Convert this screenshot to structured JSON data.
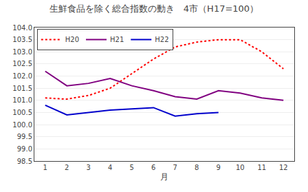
{
  "chart_data": {
    "type": "line",
    "title": "生鮮食品を除く総合指数の動き　4市（H17=100）",
    "x_label": "月",
    "xlim": [
      0.5,
      12.5
    ],
    "xticks": [
      1,
      2,
      3,
      4,
      5,
      6,
      7,
      8,
      9,
      10,
      11,
      12
    ],
    "ylim": [
      98.5,
      104.0
    ],
    "yticks": [
      98.5,
      {
        "value": 99.0,
        "label": "99.0"
      },
      99.5,
      {
        "value": 100.0,
        "label": "100.0"
      },
      100.5,
      {
        "value": 101.0,
        "label": "101.0"
      },
      101.5,
      {
        "value": 102.0,
        "label": "102.0"
      },
      102.5,
      {
        "value": 103.0,
        "label": "103.0"
      },
      103.5,
      {
        "value": 104.0,
        "label": "104.0"
      }
    ],
    "grid": true,
    "legend": "upper left",
    "series": [
      {
        "name": "H20",
        "color": "#ff0000",
        "line_style": "dotted",
        "x": [
          1,
          2,
          3,
          4,
          5,
          6,
          7,
          8,
          9,
          10,
          11,
          12
        ],
        "values": [
          101.1,
          101.05,
          101.2,
          101.5,
          102.1,
          102.7,
          103.2,
          103.4,
          103.5,
          103.5,
          103.0,
          102.3
        ]
      },
      {
        "name": "H21",
        "color": "#800080",
        "line_style": "solid",
        "x": [
          1,
          2,
          3,
          4,
          5,
          6,
          7,
          8,
          9,
          10,
          11,
          12
        ],
        "values": [
          102.2,
          101.6,
          101.7,
          101.9,
          101.6,
          101.4,
          101.15,
          101.05,
          101.4,
          101.3,
          101.1,
          101.0
        ]
      },
      {
        "name": "H22",
        "color": "#0000cc",
        "line_style": "solid",
        "x": [
          1,
          2,
          3,
          4,
          5,
          6,
          7,
          8,
          9
        ],
        "values": [
          100.8,
          100.4,
          100.5,
          100.6,
          100.65,
          100.7,
          100.35,
          100.45,
          100.5
        ]
      }
    ]
  }
}
